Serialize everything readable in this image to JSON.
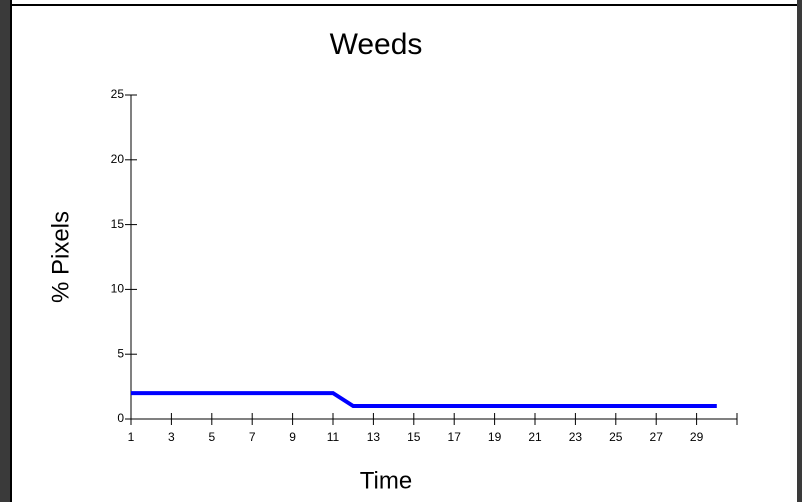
{
  "chart_data": {
    "type": "line",
    "title": "Weeds",
    "x_label": "Time",
    "y_label": "% Pixels",
    "x": [
      1,
      2,
      3,
      4,
      5,
      6,
      7,
      8,
      9,
      10,
      11,
      12,
      13,
      14,
      15,
      16,
      17,
      18,
      19,
      20,
      21,
      22,
      23,
      24,
      25,
      26,
      27,
      28,
      29,
      30
    ],
    "series": [
      {
        "name": "Weeds",
        "color": "#0000ff",
        "values": [
          2,
          2,
          2,
          2,
          2,
          2,
          2,
          2,
          2,
          2,
          2,
          1,
          1,
          1,
          1,
          1,
          1,
          1,
          1,
          1,
          1,
          1,
          1,
          1,
          1,
          1,
          1,
          1,
          1,
          1
        ]
      }
    ],
    "xlim": [
      1,
      31
    ],
    "xticks": [
      1,
      3,
      5,
      7,
      9,
      11,
      13,
      15,
      17,
      19,
      21,
      23,
      25,
      27,
      29
    ],
    "ylim": [
      0,
      25
    ],
    "yticks": [
      0,
      5,
      10,
      15,
      20,
      25
    ],
    "grid": false
  }
}
